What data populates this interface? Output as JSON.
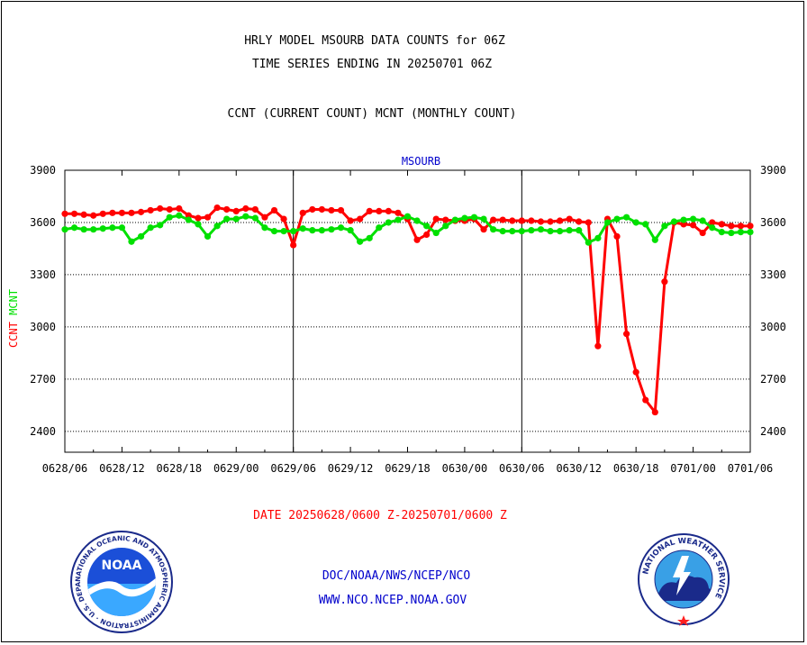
{
  "header": {
    "title_line1": "HRLY MODEL MSOURB DATA COUNTS for 06Z",
    "title_line2": "TIME SERIES ENDING IN 20250701 06Z",
    "title_line3": "CCNT (CURRENT COUNT) MCNT (MONTHLY COUNT)"
  },
  "footer": {
    "date_range": "DATE 20250628/0600 Z-20250701/0600 Z",
    "org_path": "DOC/NOAA/NWS/NCEP/NCO",
    "website": "WWW.NCO.NCEP.NOAA.GOV"
  },
  "logos": {
    "noaa_text": "NOAA",
    "noaa_ring_text": "NATIONAL OCEANIC AND ATMOSPHERIC ADMINISTRATION · U.S. DEPARTMENT OF COMMERCE",
    "nws_ring_text": "NATIONAL WEATHER SERVICE"
  },
  "colors": {
    "ccnt": "#ff0000",
    "mcnt": "#00e000",
    "plot_title": "#0000cc",
    "footer_link": "#0000cc",
    "date_text": "#ff0000"
  },
  "chart_data": {
    "type": "line",
    "title": "MSOURB",
    "ylabel_parts": [
      {
        "text": "CCNT",
        "color": "#ff0000"
      },
      {
        "text": "MCNT",
        "color": "#00e000"
      }
    ],
    "ylim": [
      2280,
      3900
    ],
    "yticks": [
      2400,
      2700,
      3000,
      3300,
      3600,
      3900
    ],
    "xlim": [
      0,
      72
    ],
    "xticks": [
      {
        "x": 0,
        "label": "0628/06"
      },
      {
        "x": 6,
        "label": "0628/12"
      },
      {
        "x": 12,
        "label": "0628/18"
      },
      {
        "x": 18,
        "label": "0629/00"
      },
      {
        "x": 24,
        "label": "0629/06"
      },
      {
        "x": 30,
        "label": "0629/12"
      },
      {
        "x": 36,
        "label": "0629/18"
      },
      {
        "x": 42,
        "label": "0630/00"
      },
      {
        "x": 48,
        "label": "0630/06"
      },
      {
        "x": 54,
        "label": "0630/12"
      },
      {
        "x": 60,
        "label": "0630/18"
      },
      {
        "x": 66,
        "label": "0701/00"
      },
      {
        "x": 72,
        "label": "0701/06"
      }
    ],
    "day_separators": [
      24,
      48
    ],
    "grid_y": true,
    "series": [
      {
        "name": "CCNT",
        "color": "#ff0000",
        "values": [
          3650,
          3650,
          3645,
          3640,
          3650,
          3655,
          3655,
          3655,
          3660,
          3670,
          3680,
          3675,
          3680,
          3640,
          3625,
          3630,
          3685,
          3675,
          3665,
          3680,
          3675,
          3630,
          3670,
          3620,
          3470,
          3655,
          3675,
          3675,
          3670,
          3670,
          3610,
          3620,
          3665,
          3665,
          3665,
          3655,
          3620,
          3500,
          3530,
          3620,
          3615,
          3610,
          3610,
          3620,
          3560,
          3615,
          3615,
          3610,
          3610,
          3610,
          3605,
          3605,
          3610,
          3620,
          3605,
          3600,
          2890,
          3620,
          3520,
          2960,
          2740,
          2580,
          2510,
          3260,
          3600,
          3590,
          3585,
          3540,
          3600,
          3590,
          3580,
          3580,
          3580
        ]
      },
      {
        "name": "MCNT",
        "color": "#00e000",
        "values": [
          3560,
          3570,
          3560,
          3560,
          3565,
          3570,
          3570,
          3490,
          3520,
          3570,
          3585,
          3630,
          3640,
          3615,
          3590,
          3520,
          3580,
          3620,
          3620,
          3635,
          3625,
          3570,
          3550,
          3550,
          3550,
          3565,
          3555,
          3555,
          3560,
          3570,
          3555,
          3490,
          3510,
          3570,
          3600,
          3615,
          3635,
          3610,
          3580,
          3540,
          3580,
          3615,
          3625,
          3630,
          3620,
          3560,
          3550,
          3550,
          3550,
          3555,
          3560,
          3550,
          3550,
          3555,
          3555,
          3485,
          3510,
          3600,
          3620,
          3630,
          3600,
          3590,
          3500,
          3580,
          3605,
          3615,
          3620,
          3610,
          3570,
          3545,
          3540,
          3545,
          3545
        ]
      }
    ]
  }
}
